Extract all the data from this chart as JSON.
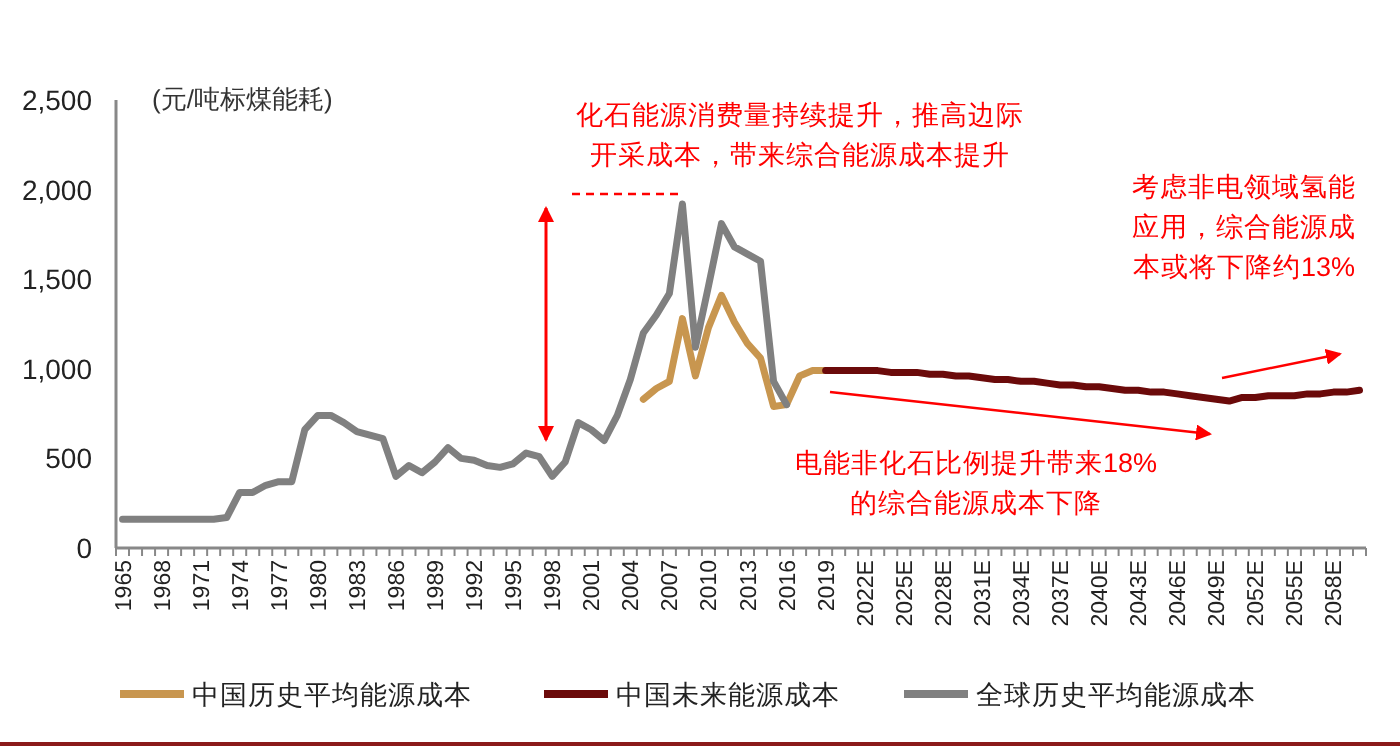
{
  "chart_data": {
    "type": "line",
    "ylabel": "(元/吨标煤能耗)",
    "categories": [
      "1965",
      null,
      null,
      "1968",
      null,
      null,
      "1971",
      null,
      null,
      "1974",
      null,
      null,
      "1977",
      null,
      null,
      "1980",
      null,
      null,
      "1983",
      null,
      null,
      "1986",
      null,
      null,
      "1989",
      null,
      null,
      "1992",
      null,
      null,
      "1995",
      null,
      null,
      "1998",
      null,
      null,
      "2001",
      null,
      null,
      "2004",
      null,
      null,
      "2007",
      null,
      null,
      "2010",
      null,
      null,
      "2013",
      null,
      null,
      "2016",
      null,
      null,
      "2019",
      null,
      null,
      "2022E",
      null,
      null,
      "2025E",
      null,
      null,
      "2028E",
      null,
      null,
      "2031E",
      null,
      null,
      "2034E",
      null,
      null,
      "2037E",
      null,
      null,
      "2040E",
      null,
      null,
      "2043E",
      null,
      null,
      "2046E",
      null,
      null,
      "2049E",
      null,
      null,
      "2052E",
      null,
      null,
      "2055E",
      null,
      null,
      "2058E",
      null,
      null
    ],
    "series": [
      {
        "name": "中国历史平均能源成本",
        "color": "#c8964f",
        "values": [
          null,
          null,
          null,
          null,
          null,
          null,
          null,
          null,
          null,
          null,
          null,
          null,
          null,
          null,
          null,
          null,
          null,
          null,
          null,
          null,
          null,
          null,
          null,
          null,
          null,
          null,
          null,
          null,
          null,
          null,
          null,
          null,
          null,
          null,
          null,
          null,
          null,
          null,
          null,
          null,
          830,
          890,
          930,
          1280,
          960,
          1230,
          1410,
          1260,
          1140,
          1060,
          790,
          800,
          960,
          990,
          990,
          null,
          null,
          null,
          null,
          null,
          null,
          null,
          null,
          null,
          null,
          null,
          null,
          null,
          null,
          null,
          null,
          null,
          null,
          null,
          null,
          null,
          null,
          null,
          null,
          null,
          null,
          null,
          null,
          null,
          null,
          null,
          null,
          null,
          null,
          null,
          null,
          null,
          null,
          null,
          null,
          null
        ]
      },
      {
        "name": "中国未来能源成本",
        "color": "#6b0a0a",
        "values": [
          null,
          null,
          null,
          null,
          null,
          null,
          null,
          null,
          null,
          null,
          null,
          null,
          null,
          null,
          null,
          null,
          null,
          null,
          null,
          null,
          null,
          null,
          null,
          null,
          null,
          null,
          null,
          null,
          null,
          null,
          null,
          null,
          null,
          null,
          null,
          null,
          null,
          null,
          null,
          null,
          null,
          null,
          null,
          null,
          null,
          null,
          null,
          null,
          null,
          null,
          null,
          null,
          null,
          null,
          990,
          990,
          990,
          990,
          990,
          980,
          980,
          980,
          970,
          970,
          960,
          960,
          950,
          940,
          940,
          930,
          930,
          920,
          910,
          910,
          900,
          900,
          890,
          880,
          880,
          870,
          870,
          860,
          850,
          840,
          830,
          820,
          840,
          840,
          850,
          850,
          850,
          860,
          860,
          870,
          870,
          880
        ]
      },
      {
        "name": "全球历史平均能源成本",
        "color": "#808080",
        "values": [
          160,
          160,
          160,
          160,
          160,
          160,
          160,
          160,
          170,
          310,
          310,
          350,
          370,
          370,
          660,
          740,
          740,
          700,
          650,
          630,
          610,
          400,
          460,
          420,
          480,
          560,
          500,
          490,
          460,
          450,
          470,
          530,
          510,
          400,
          480,
          700,
          660,
          600,
          740,
          940,
          1200,
          1300,
          1420,
          1920,
          1120,
          1460,
          1810,
          1680,
          1640,
          1600,
          930,
          800,
          null,
          null,
          null,
          null,
          null,
          null,
          null,
          null,
          null,
          null,
          null,
          null,
          null,
          null,
          null,
          null,
          null,
          null,
          null,
          null,
          null,
          null,
          null,
          null,
          null,
          null,
          null,
          null,
          null,
          null,
          null,
          null,
          null,
          null,
          null,
          null,
          null,
          null,
          null,
          null,
          null,
          null,
          null,
          null
        ]
      }
    ],
    "ylim": [
      0,
      2500
    ],
    "yticks": [
      0,
      500,
      {
        "value": 1000,
        "label": "1,000"
      },
      {
        "value": 1500,
        "label": "1,500"
      },
      {
        "value": 2000,
        "label": "2,000"
      },
      {
        "value": 2500,
        "label": "2,500"
      }
    ],
    "annotations": [
      "化石能源消费量持续提升，推高边际",
      "开采成本，带来综合能源成本提升",
      "考虑非电领域氢能",
      "应用，综合能源成",
      "本或将下降约13%",
      "电能非化石比例提升带来18%",
      "的综合能源成本下降"
    ],
    "legend": "bottom",
    "grid": false,
    "line_style": "solid",
    "marker": "none"
  }
}
